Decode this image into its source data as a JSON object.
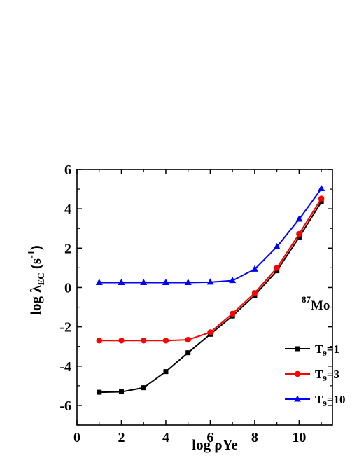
{
  "chart_data": {
    "type": "line",
    "title": "",
    "xlabel_parts": {
      "log": "log ",
      "rho": "ρ",
      "ye": "Ye"
    },
    "ylabel_parts": {
      "log": "log ",
      "lambda": "λ",
      "sub": "EC",
      "open": " (s",
      "sup": "-1",
      "close": ")"
    },
    "annotation": {
      "mass": "87",
      "element": "Mo"
    },
    "xlim": [
      0,
      11.5
    ],
    "ylim": [
      -7,
      6
    ],
    "x_ticks": [
      0,
      2,
      4,
      6,
      8,
      10
    ],
    "y_ticks": [
      -6,
      -4,
      -2,
      0,
      2,
      4,
      6
    ],
    "x_tick_labels": [
      "0",
      "2",
      "4",
      "6",
      "8",
      "10"
    ],
    "y_tick_labels": [
      "-6",
      "-4",
      "-2",
      "0",
      "2",
      "4",
      "6"
    ],
    "x": [
      1,
      2,
      3,
      4,
      5,
      6,
      7,
      8,
      9,
      10,
      11
    ],
    "legend_position": "bottom-right",
    "series": [
      {
        "label_main": "T",
        "label_sub": "9",
        "label_rest": "=1",
        "color": "#000000",
        "marker": "square",
        "values": [
          -5.33,
          -5.31,
          -5.1,
          -4.28,
          -3.32,
          -2.38,
          -1.45,
          -0.4,
          0.85,
          2.55,
          4.35
        ]
      },
      {
        "label_main": "T",
        "label_sub": "9",
        "label_rest": "=3",
        "color": "#ff0000",
        "marker": "circle",
        "values": [
          -2.7,
          -2.7,
          -2.7,
          -2.7,
          -2.66,
          -2.28,
          -1.33,
          -0.28,
          1.0,
          2.72,
          4.52
        ]
      },
      {
        "label_main": "T",
        "label_sub": "9",
        "label_rest": "=10",
        "color": "#0000ff",
        "marker": "triangle",
        "values": [
          0.25,
          0.25,
          0.25,
          0.25,
          0.25,
          0.27,
          0.35,
          0.93,
          2.07,
          3.47,
          5.02
        ]
      }
    ]
  }
}
